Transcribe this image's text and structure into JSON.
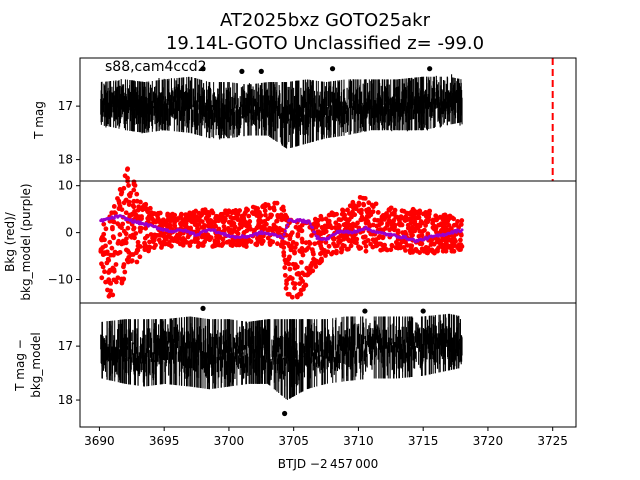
{
  "title_line1": "AT2025bxz  GOTO25akr",
  "title_line2": "19.14L-GOTO Unclassified z= -99.0",
  "chart_data": [
    {
      "type": "scatter",
      "panel": "top",
      "ylabel": "T mag",
      "ylim": [
        18.4,
        16.1
      ],
      "yticks": [
        17,
        18
      ],
      "ytick_labels": [
        "17",
        "18"
      ],
      "annotation": "s88,cam4ccd2",
      "series": [
        {
          "color": "#000000",
          "marker": "errorbar",
          "t_range": [
            3690.1,
            3718.0
          ],
          "median_band": [
            [
              3690.2,
              16.55,
              17.35
            ],
            [
              3692.0,
              16.5,
              17.45
            ],
            [
              3693.5,
              16.55,
              17.5
            ],
            [
              3695.0,
              16.5,
              17.45
            ],
            [
              3697.0,
              16.45,
              17.5
            ],
            [
              3698.5,
              16.55,
              17.6
            ],
            [
              3700.0,
              16.55,
              17.6
            ],
            [
              3701.5,
              16.6,
              17.55
            ],
            [
              3703.0,
              16.55,
              17.55
            ],
            [
              3704.5,
              16.55,
              17.8
            ],
            [
              3706.0,
              16.5,
              17.7
            ],
            [
              3707.5,
              16.55,
              17.6
            ],
            [
              3709.0,
              16.5,
              17.55
            ],
            [
              3711.0,
              16.5,
              17.45
            ],
            [
              3713.0,
              16.5,
              17.45
            ],
            [
              3715.0,
              16.45,
              17.45
            ],
            [
              3717.0,
              16.45,
              17.35
            ],
            [
              3718.0,
              16.5,
              17.3
            ]
          ],
          "outliers": [
            [
              3698.0,
              16.3
            ],
            [
              3701.0,
              16.35
            ],
            [
              3708.0,
              16.3
            ],
            [
              3715.5,
              16.3
            ],
            [
              3702.5,
              16.35
            ]
          ]
        },
        {
          "color": "#ff0000",
          "style": "dashed-vertical-line",
          "x": 3725.0
        }
      ]
    },
    {
      "type": "scatter",
      "panel": "middle",
      "ylabel_lines": [
        "Bkg (red)/",
        "bkg_model (purple)"
      ],
      "ylim": [
        -15,
        11
      ],
      "yticks": [
        -10,
        0,
        10
      ],
      "ytick_labels": [
        "−10",
        "0",
        "10"
      ],
      "series": [
        {
          "name": "Bkg",
          "color": "#ff0000",
          "band": [
            [
              3690.1,
              -10,
              3
            ],
            [
              3690.8,
              -14,
              5
            ],
            [
              3691.5,
              -12,
              10
            ],
            [
              3692.3,
              -8,
              15
            ],
            [
              3693.0,
              -6,
              8
            ],
            [
              3694.0,
              -4,
              5
            ],
            [
              3695.0,
              -3,
              4
            ],
            [
              3696.5,
              -3,
              4
            ],
            [
              3698.0,
              -3,
              5
            ],
            [
              3699.5,
              -3,
              5
            ],
            [
              3701.0,
              -3,
              5
            ],
            [
              3702.5,
              -3,
              6
            ],
            [
              3704.0,
              -3,
              7
            ],
            [
              3704.5,
              -14,
              3
            ],
            [
              3705.5,
              -14,
              2
            ],
            [
              3706.5,
              -8,
              3
            ],
            [
              3707.5,
              -5,
              4
            ],
            [
              3709.0,
              -4,
              5
            ],
            [
              3710.0,
              -4,
              8
            ],
            [
              3711.5,
              -4,
              6
            ],
            [
              3713.0,
              -4,
              5
            ],
            [
              3715.0,
              -5,
              5
            ],
            [
              3716.5,
              -4,
              4
            ],
            [
              3718.0,
              -4,
              3
            ]
          ]
        },
        {
          "name": "bkg_model",
          "color": "#9900cc",
          "points": [
            [
              3690.1,
              2.5
            ],
            [
              3690.8,
              3.0
            ],
            [
              3691.5,
              3.5
            ],
            [
              3692.5,
              2.5
            ],
            [
              3693.5,
              1.8
            ],
            [
              3694.5,
              1.0
            ],
            [
              3695.5,
              0.3
            ],
            [
              3696.5,
              0.5
            ],
            [
              3697.5,
              -0.5
            ],
            [
              3698.5,
              0.8
            ],
            [
              3699.5,
              -0.3
            ],
            [
              3700.5,
              -1.0
            ],
            [
              3701.5,
              -0.8
            ],
            [
              3702.5,
              0.0
            ],
            [
              3703.5,
              -0.5
            ],
            [
              3704.2,
              -1.0
            ],
            [
              3704.6,
              2.5
            ],
            [
              3705.5,
              2.6
            ],
            [
              3706.2,
              2.2
            ],
            [
              3706.8,
              -1.0
            ],
            [
              3707.5,
              -1.5
            ],
            [
              3708.5,
              0.3
            ],
            [
              3709.5,
              0.0
            ],
            [
              3710.5,
              1.0
            ],
            [
              3711.5,
              0.0
            ],
            [
              3712.5,
              -0.5
            ],
            [
              3713.5,
              -1.0
            ],
            [
              3714.5,
              -1.8
            ],
            [
              3715.5,
              -1.0
            ],
            [
              3716.5,
              -0.5
            ],
            [
              3717.5,
              0.3
            ],
            [
              3718.0,
              0.5
            ]
          ]
        }
      ]
    },
    {
      "type": "scatter",
      "panel": "bottom",
      "ylabel_lines": [
        "T mag −",
        "bkg_model"
      ],
      "xlabel": "BTJD −2 457 000",
      "xlim": [
        3688.5,
        3726.8
      ],
      "xticks": [
        3690,
        3695,
        3700,
        3705,
        3710,
        3715,
        3720,
        3725
      ],
      "xtick_labels": [
        "3690",
        "3695",
        "3700",
        "3705",
        "3710",
        "3715",
        "3720",
        "3725"
      ],
      "ylim": [
        18.5,
        16.2
      ],
      "yticks": [
        17,
        18
      ],
      "ytick_labels": [
        "17",
        "18"
      ],
      "series": [
        {
          "color": "#000000",
          "marker": "errorbar",
          "median_band": [
            [
              3690.2,
              16.55,
              17.6
            ],
            [
              3692.0,
              16.5,
              17.7
            ],
            [
              3693.5,
              16.5,
              17.75
            ],
            [
              3695.0,
              16.5,
              17.7
            ],
            [
              3697.0,
              16.45,
              17.75
            ],
            [
              3698.5,
              16.5,
              17.8
            ],
            [
              3700.0,
              16.5,
              17.75
            ],
            [
              3701.5,
              16.55,
              17.7
            ],
            [
              3703.0,
              16.5,
              17.7
            ],
            [
              3704.5,
              16.5,
              18.0
            ],
            [
              3706.0,
              16.5,
              17.8
            ],
            [
              3707.5,
              16.5,
              17.7
            ],
            [
              3709.0,
              16.45,
              17.65
            ],
            [
              3711.0,
              16.45,
              17.6
            ],
            [
              3713.0,
              16.45,
              17.6
            ],
            [
              3715.0,
              16.45,
              17.55
            ],
            [
              3717.0,
              16.4,
              17.45
            ],
            [
              3718.0,
              16.45,
              17.4
            ]
          ],
          "outliers": [
            [
              3698.0,
              16.3
            ],
            [
              3704.3,
              18.25
            ],
            [
              3710.5,
              16.35
            ],
            [
              3715.0,
              16.35
            ]
          ]
        }
      ]
    }
  ]
}
